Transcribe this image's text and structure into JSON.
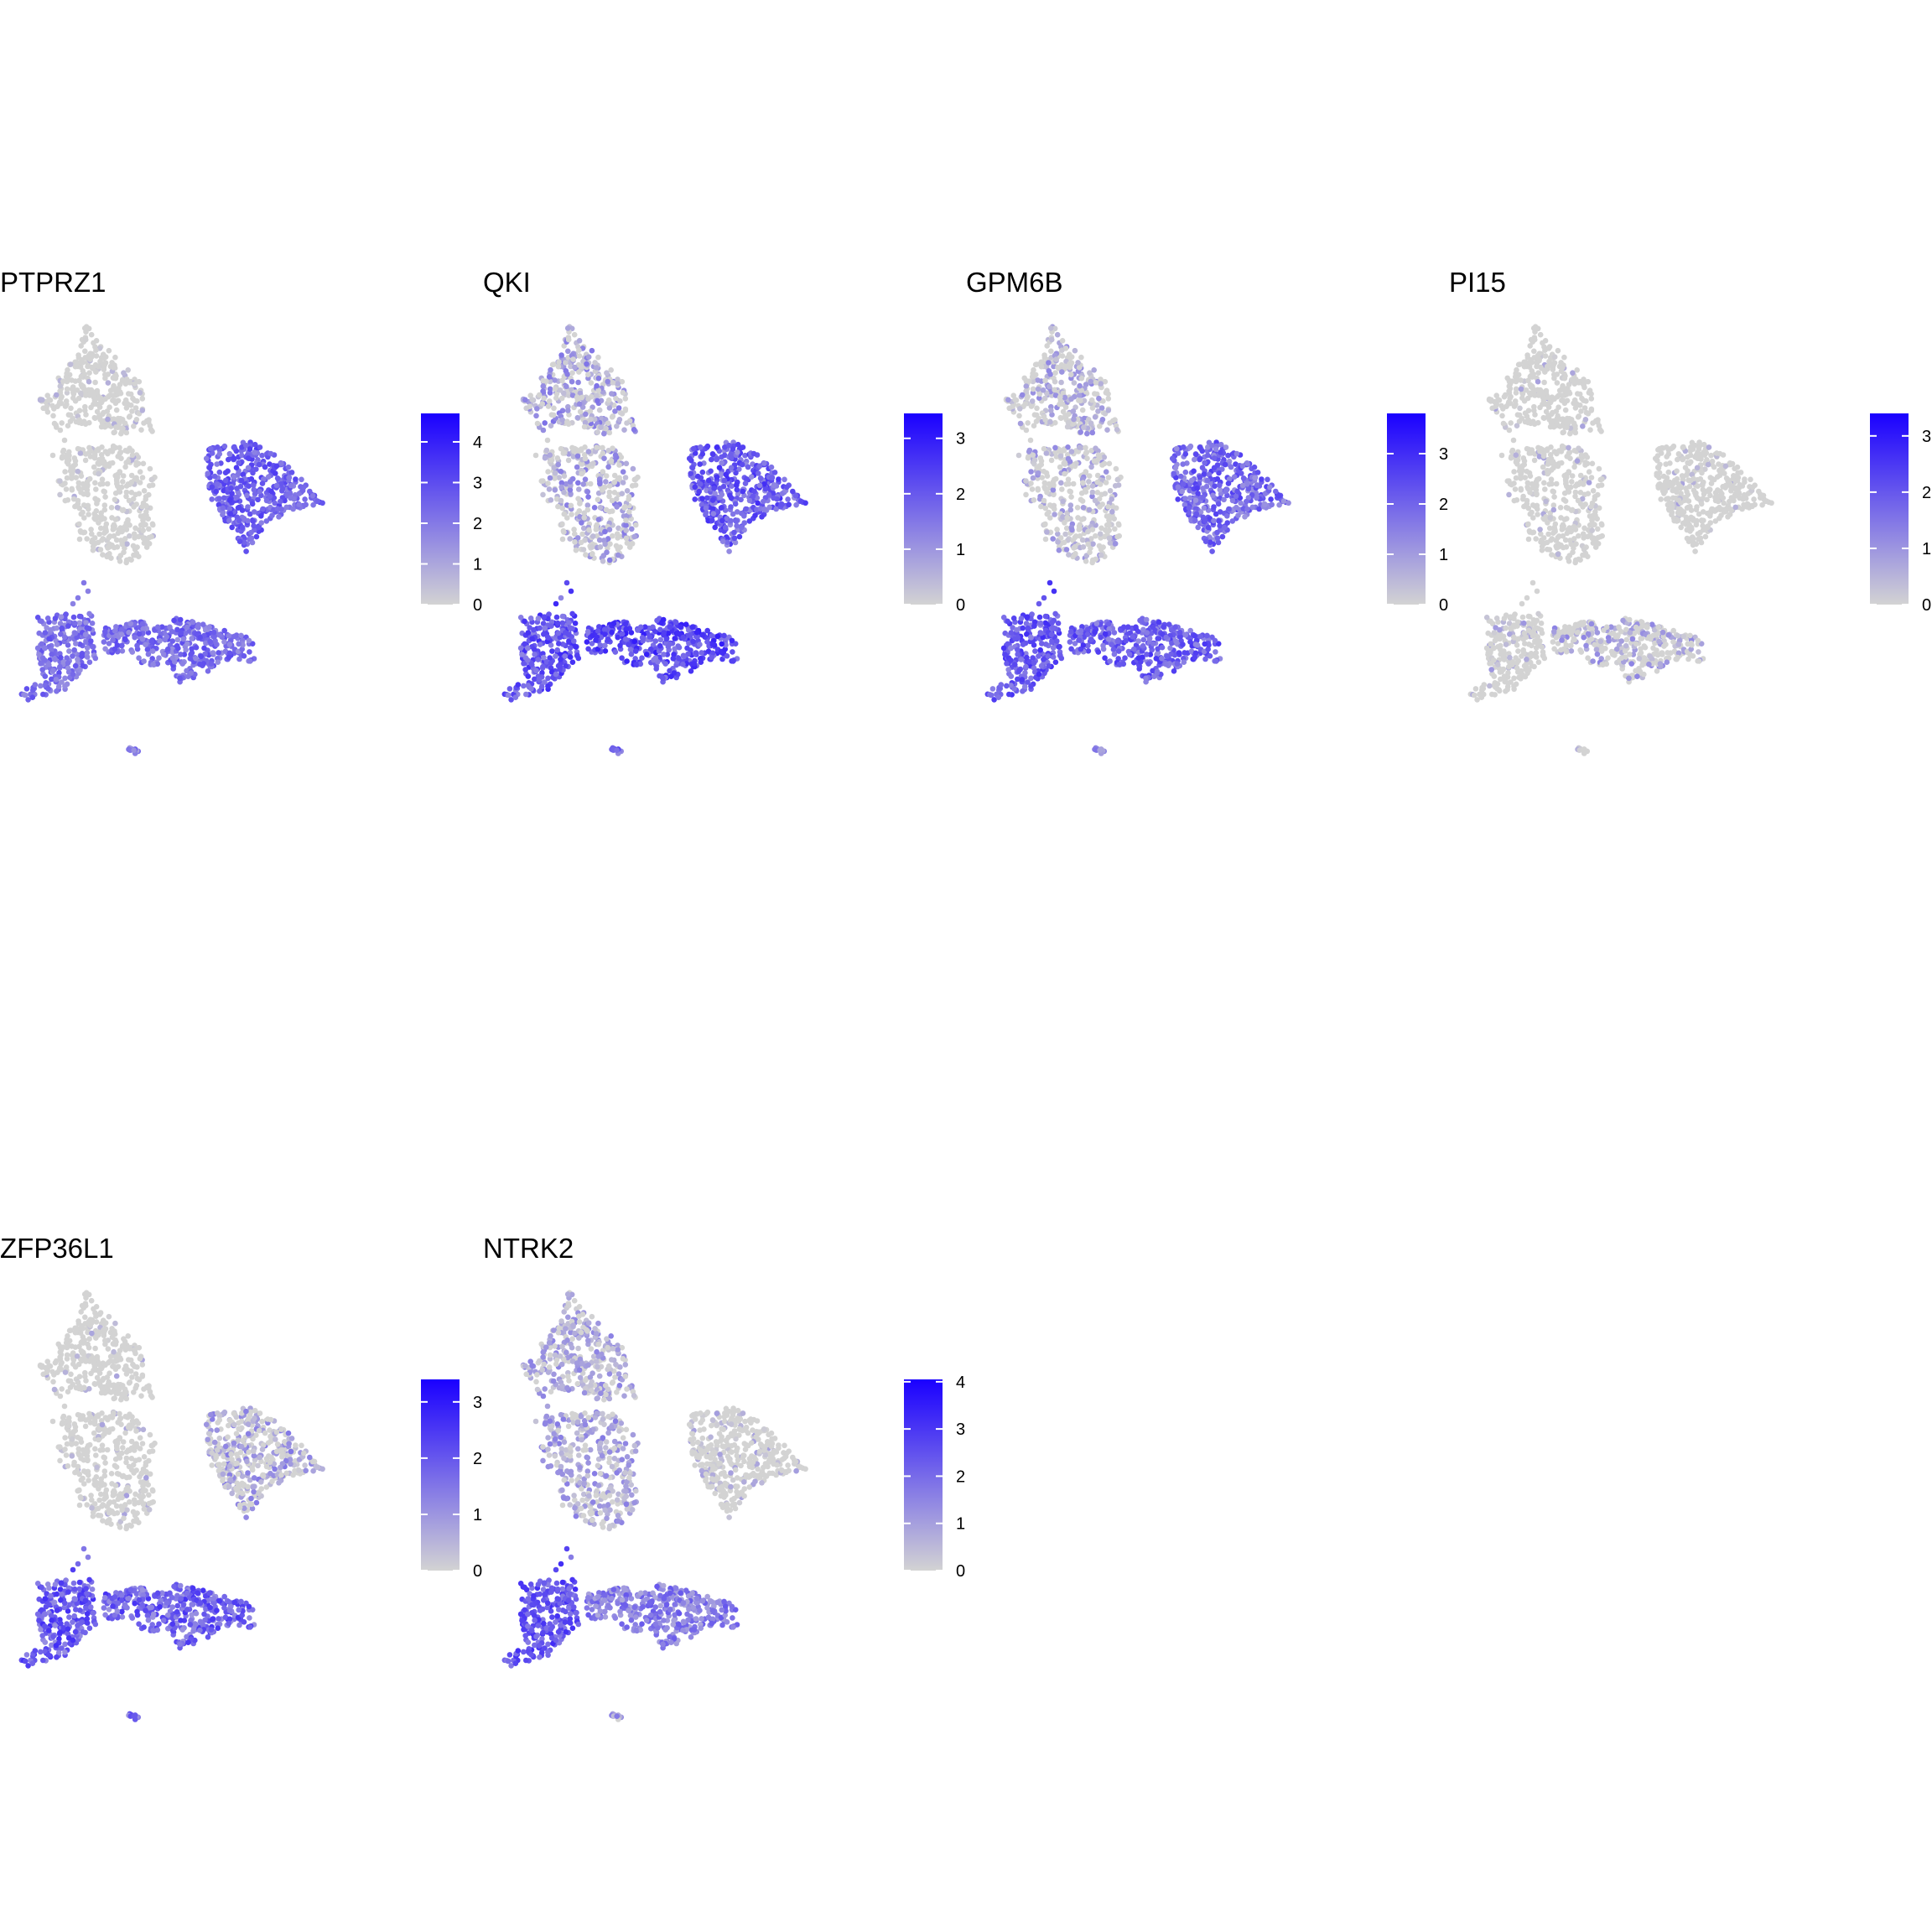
{
  "chart_data": [
    {
      "type": "scatter",
      "title": "PTPRZ1",
      "legend_ticks": [
        0,
        1,
        2,
        3,
        4
      ],
      "color_max": 4.7,
      "low_color": "#d3d3d3",
      "high_color": "#1a00ff",
      "cluster_levels": {
        "top": 0.15,
        "middle": 0.05,
        "right_lobe": 2.6,
        "bottom_left": 2.2,
        "bottom_right": 2.3,
        "tiny": 1.8
      }
    },
    {
      "type": "scatter",
      "title": "QKI",
      "legend_ticks": [
        0,
        1,
        2,
        3
      ],
      "color_max": 3.45,
      "low_color": "#d3d3d3",
      "high_color": "#1a00ff",
      "cluster_levels": {
        "top": 0.8,
        "middle": 0.7,
        "right_lobe": 1.9,
        "bottom_left": 2.0,
        "bottom_right": 2.2,
        "tiny": 1.6
      }
    },
    {
      "type": "scatter",
      "title": "GPM6B",
      "legend_ticks": [
        0,
        1,
        2,
        3
      ],
      "color_max": 3.8,
      "low_color": "#d3d3d3",
      "high_color": "#1a00ff",
      "cluster_levels": {
        "top": 0.6,
        "middle": 0.55,
        "right_lobe": 1.9,
        "bottom_left": 2.2,
        "bottom_right": 2.1,
        "tiny": 1.5
      }
    },
    {
      "type": "scatter",
      "title": "PI15",
      "legend_ticks": [
        0,
        1,
        2,
        3
      ],
      "color_max": 3.4,
      "low_color": "#d3d3d3",
      "high_color": "#1a00ff",
      "cluster_levels": {
        "top": 0.03,
        "middle": 0.05,
        "right_lobe": 0.05,
        "bottom_left": 0.2,
        "bottom_right": 0.5,
        "tiny": 0.0
      }
    },
    {
      "type": "scatter",
      "title": "ZFP36L1",
      "legend_ticks": [
        0,
        1,
        2,
        3
      ],
      "color_max": 3.4,
      "low_color": "#d3d3d3",
      "high_color": "#1a00ff",
      "cluster_levels": {
        "top": 0.05,
        "middle": 0.1,
        "right_lobe": 0.7,
        "bottom_left": 1.9,
        "bottom_right": 1.8,
        "tiny": 1.6
      }
    },
    {
      "type": "scatter",
      "title": "NTRK2",
      "legend_ticks": [
        0,
        1,
        2,
        3,
        4
      ],
      "color_max": 4.05,
      "low_color": "#d3d3d3",
      "high_color": "#1a00ff",
      "cluster_levels": {
        "top": 0.8,
        "middle": 0.9,
        "right_lobe": 0.25,
        "bottom_left": 2.4,
        "bottom_right": 1.6,
        "tiny": 1.0
      }
    }
  ]
}
